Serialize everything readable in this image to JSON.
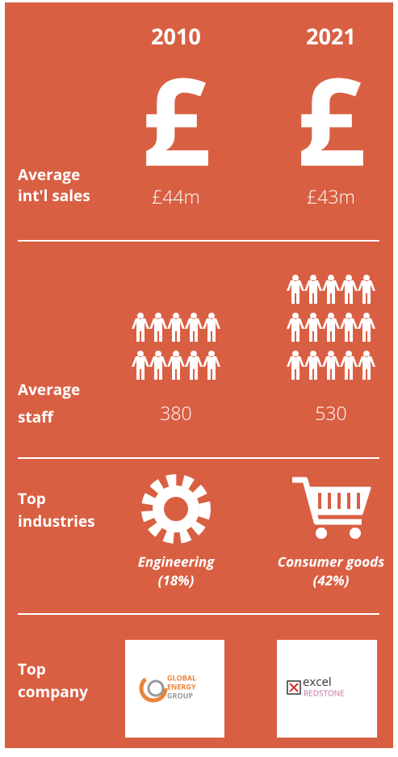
{
  "header": {
    "years": [
      "2010",
      "2021"
    ]
  },
  "rows": [
    {
      "label": [
        "Average",
        "int'l sales"
      ],
      "values": [
        "£44m",
        "£43m"
      ]
    },
    {
      "label": [
        "Average",
        "staff"
      ],
      "values": [
        "380",
        "530"
      ]
    },
    {
      "label": [
        "Top",
        "industries"
      ],
      "values": [
        [
          "Engineering",
          "(18%)"
        ],
        [
          "Consumer goods",
          "(42%)"
        ]
      ]
    },
    {
      "label": [
        "Top",
        "company"
      ],
      "logos": [
        [
          "GLOBAL",
          "ENERGY",
          "GROUP"
        ],
        [
          "excel",
          "REDSTONE"
        ]
      ]
    }
  ],
  "symbol": "£"
}
